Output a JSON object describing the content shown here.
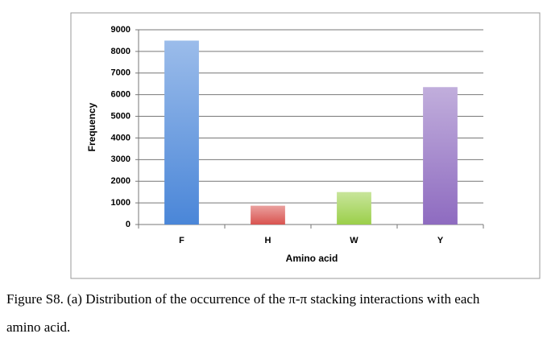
{
  "chart_data": {
    "type": "bar",
    "categories": [
      "F",
      "H",
      "W",
      "Y"
    ],
    "values": [
      8500,
      870,
      1500,
      6350
    ],
    "colors": [
      "#4a86d8",
      "#d9534f",
      "#9bcf4a",
      "#8e6bc0"
    ],
    "ylim": [
      0,
      9000
    ],
    "yticks": [
      0,
      1000,
      2000,
      3000,
      4000,
      5000,
      6000,
      7000,
      8000,
      9000
    ],
    "grid": true,
    "y_label": "Frequency",
    "x_label": "Amino acid"
  },
  "caption": [
    "Figure S8. (a) Distribution of the occurrence of the π-π stacking interactions with each",
    "amino acid."
  ]
}
